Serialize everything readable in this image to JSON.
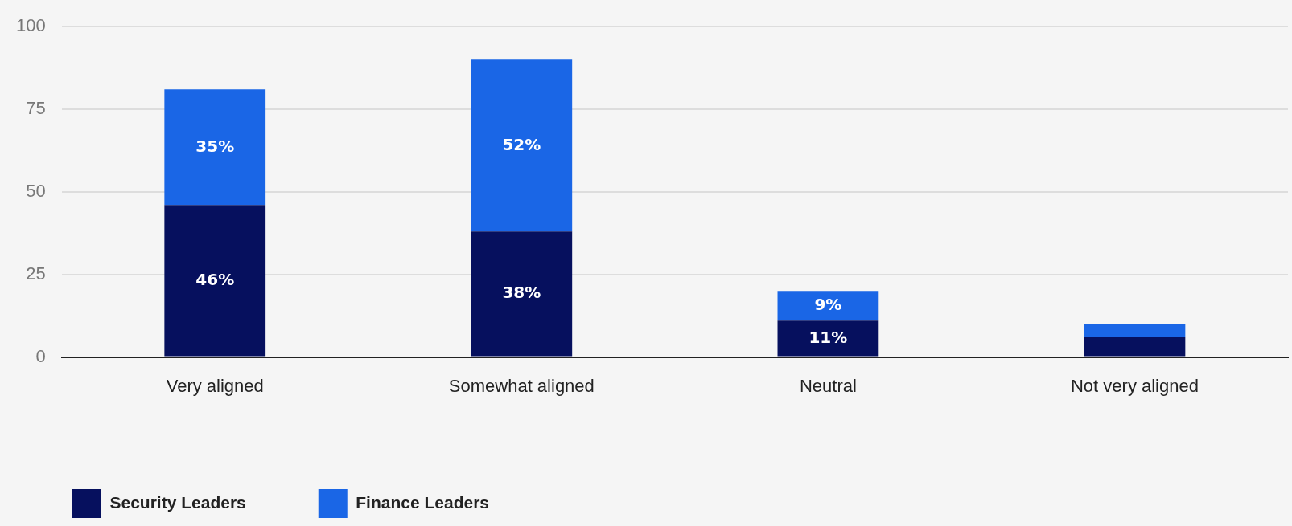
{
  "chart_data": {
    "type": "bar",
    "stacked": true,
    "categories": [
      "Very aligned",
      "Somewhat aligned",
      "Neutral",
      "Not very aligned"
    ],
    "series": [
      {
        "name": "Security Leaders",
        "color": "#06105e",
        "values": [
          46,
          38,
          11,
          6
        ],
        "value_labels": [
          "46%",
          "38%",
          "11%",
          null
        ]
      },
      {
        "name": "Finance Leaders",
        "color": "#1a66e6",
        "values": [
          35,
          52,
          9,
          4
        ],
        "value_labels": [
          "35%",
          "52%",
          "9%",
          null
        ]
      }
    ],
    "ylim": [
      0,
      100
    ],
    "yticks": [
      0,
      25,
      50,
      75,
      100
    ],
    "grid": "y",
    "legend": "bottom"
  }
}
